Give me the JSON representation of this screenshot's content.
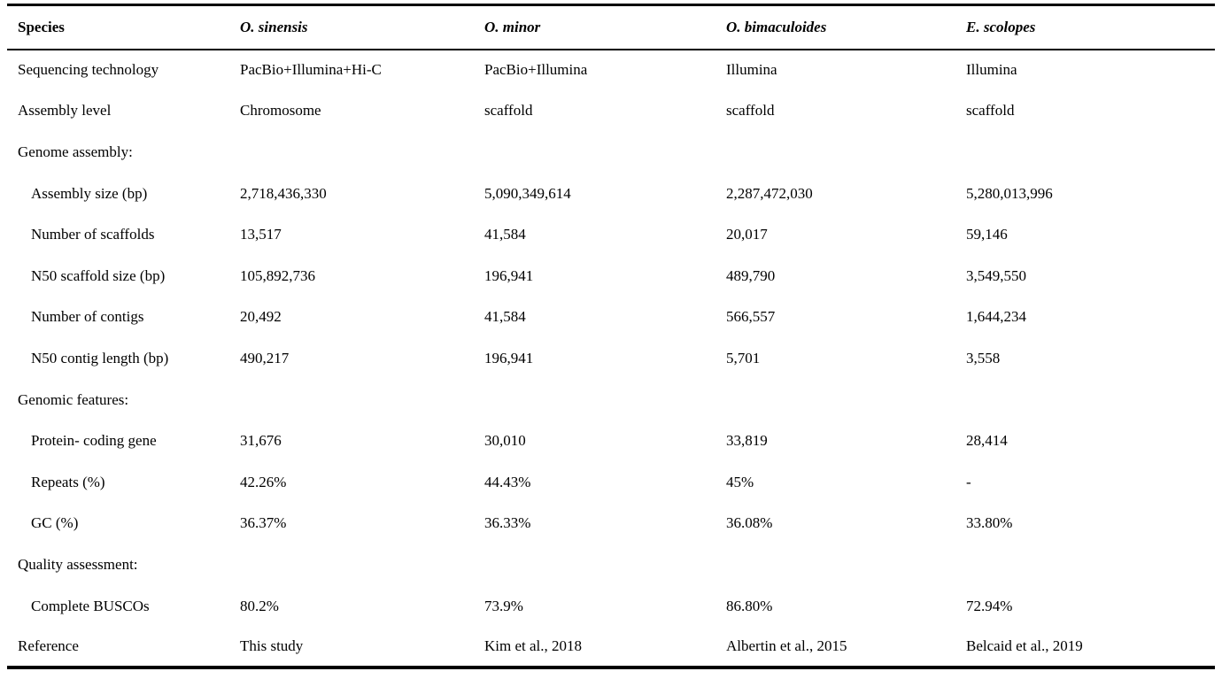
{
  "colors": {
    "text": "#000000",
    "background": "#ffffff",
    "rule": "#000000"
  },
  "table": {
    "columns": [
      "Species",
      "O. sinensis",
      "O. minor",
      "O. bimaculoides",
      "E. scolopes"
    ],
    "rows": [
      {
        "label": "Sequencing technology",
        "indent": 0,
        "section": false,
        "values": [
          "PacBio+Illumina+Hi-C",
          "PacBio+Illumina",
          "Illumina",
          "Illumina"
        ]
      },
      {
        "label": "Assembly level",
        "indent": 0,
        "section": false,
        "values": [
          "Chromosome",
          "scaffold",
          "scaffold",
          "scaffold"
        ]
      },
      {
        "label": "Genome assembly:",
        "indent": 0,
        "section": true,
        "values": [
          "",
          "",
          "",
          ""
        ]
      },
      {
        "label": "Assembly size (bp)",
        "indent": 1,
        "section": false,
        "values": [
          "2,718,436,330",
          "5,090,349,614",
          "2,287,472,030",
          "5,280,013,996"
        ]
      },
      {
        "label": "Number of scaffolds",
        "indent": 1,
        "section": false,
        "values": [
          "13,517",
          "41,584",
          "20,017",
          "59,146"
        ]
      },
      {
        "label": "N50 scaffold size (bp)",
        "indent": 1,
        "section": false,
        "values": [
          "105,892,736",
          "196,941",
          "489,790",
          "3,549,550"
        ]
      },
      {
        "label": "Number of contigs",
        "indent": 1,
        "section": false,
        "values": [
          "20,492",
          "41,584",
          "566,557",
          "1,644,234"
        ]
      },
      {
        "label": "N50 contig length (bp)",
        "indent": 1,
        "section": false,
        "values": [
          "490,217",
          "196,941",
          "5,701",
          "3,558"
        ]
      },
      {
        "label": "Genomic features:",
        "indent": 0,
        "section": true,
        "values": [
          "",
          "",
          "",
          ""
        ]
      },
      {
        "label": "Protein- coding gene",
        "indent": 1,
        "section": false,
        "values": [
          "31,676",
          "30,010",
          "33,819",
          "28,414"
        ]
      },
      {
        "label": "Repeats (%)",
        "indent": 1,
        "section": false,
        "values": [
          "42.26%",
          "44.43%",
          "45%",
          "-"
        ]
      },
      {
        "label": "GC (%)",
        "indent": 1,
        "section": false,
        "values": [
          "36.37%",
          "36.33%",
          "36.08%",
          "33.80%"
        ]
      },
      {
        "label": "Quality assessment:",
        "indent": 0,
        "section": true,
        "values": [
          "",
          "",
          "",
          ""
        ]
      },
      {
        "label": "Complete BUSCOs",
        "indent": 1,
        "section": false,
        "values": [
          "80.2%",
          "73.9%",
          "86.80%",
          "72.94%"
        ]
      },
      {
        "label": "Reference",
        "indent": 0,
        "section": false,
        "values": [
          "This study",
          "Kim et al., 2018",
          "Albertin et al., 2015",
          "Belcaid et al., 2019"
        ]
      }
    ]
  }
}
